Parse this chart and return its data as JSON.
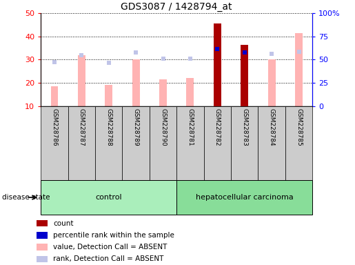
{
  "title": "GDS3087 / 1428794_at",
  "samples": [
    "GSM228786",
    "GSM228787",
    "GSM228788",
    "GSM228789",
    "GSM228790",
    "GSM228781",
    "GSM228782",
    "GSM228783",
    "GSM228784",
    "GSM228785"
  ],
  "groups": [
    "control",
    "control",
    "control",
    "control",
    "control",
    "hepatocellular carcinoma",
    "hepatocellular carcinoma",
    "hepatocellular carcinoma",
    "hepatocellular carcinoma",
    "hepatocellular carcinoma"
  ],
  "value_absent": [
    18.5,
    32.0,
    19.0,
    30.0,
    21.5,
    22.0,
    45.5,
    36.5,
    30.0,
    41.5
  ],
  "rank_absent": [
    29.0,
    32.0,
    28.5,
    33.0,
    30.5,
    30.5,
    null,
    null,
    32.5,
    33.5
  ],
  "count": [
    null,
    null,
    null,
    null,
    null,
    null,
    45.5,
    36.5,
    null,
    null
  ],
  "percentile_rank": [
    null,
    null,
    null,
    null,
    null,
    null,
    34.5,
    33.0,
    null,
    null
  ],
  "ylim_left": [
    10,
    50
  ],
  "ylim_right": [
    0,
    100
  ],
  "yticks_left": [
    10,
    20,
    30,
    40,
    50
  ],
  "yticks_right": [
    0,
    25,
    50,
    75,
    100
  ],
  "yticklabels_right": [
    "0",
    "25",
    "50",
    "75",
    "100%"
  ],
  "color_value_absent": "#FFB3B3",
  "color_rank_absent": "#C0C4E8",
  "color_count": "#AA0000",
  "color_percentile": "#0000CC",
  "color_control_bg": "#AAEEBB",
  "color_cancer_bg": "#88DD99",
  "color_label_bg": "#CCCCCC",
  "legend_items": [
    "count",
    "percentile rank within the sample",
    "value, Detection Call = ABSENT",
    "rank, Detection Call = ABSENT"
  ],
  "legend_colors": [
    "#AA0000",
    "#0000CC",
    "#FFB3B3",
    "#C0C4E8"
  ],
  "n_control": 5,
  "n_cancer": 5
}
